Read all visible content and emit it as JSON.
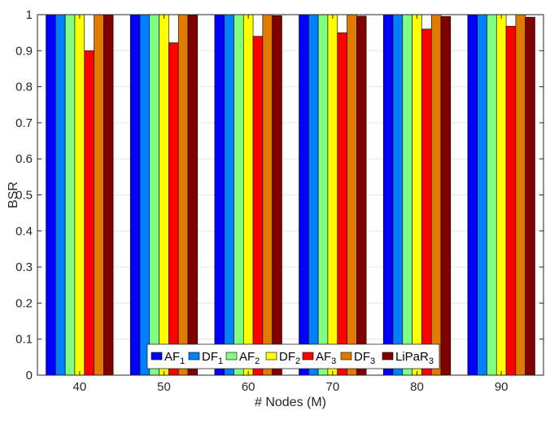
{
  "chart_data": {
    "type": "bar",
    "categories": [
      "40",
      "50",
      "60",
      "70",
      "80",
      "90"
    ],
    "series": [
      {
        "name": "AF",
        "sub": "1",
        "color": "#0000ff",
        "values": [
          1,
          1,
          1,
          1,
          1,
          1
        ]
      },
      {
        "name": "DF",
        "sub": "1",
        "color": "#0080ff",
        "values": [
          1,
          1,
          1,
          1,
          1,
          1
        ]
      },
      {
        "name": "AF",
        "sub": "2",
        "color": "#80ff80",
        "values": [
          1,
          1,
          1,
          1,
          1,
          1
        ]
      },
      {
        "name": "DF",
        "sub": "2",
        "color": "#ffff00",
        "values": [
          1,
          1,
          1,
          1,
          1,
          1
        ]
      },
      {
        "name": "AF",
        "sub": "3",
        "color": "#ff0000",
        "values": [
          0.9,
          0.922,
          0.94,
          0.95,
          0.96,
          0.968
        ]
      },
      {
        "name": "DF",
        "sub": "3",
        "color": "#e07b00",
        "values": [
          1,
          1,
          1,
          1,
          1,
          1
        ]
      },
      {
        "name": "LiPaR",
        "sub": "3",
        "color": "#800000",
        "values": [
          1,
          0.998,
          0.997,
          0.996,
          0.995,
          0.993
        ]
      }
    ],
    "xlabel": "# Nodes (M)",
    "ylabel": "BSR",
    "ylim": [
      0,
      1
    ],
    "yticks": [
      "0",
      "0.1",
      "0.2",
      "0.3",
      "0.4",
      "0.5",
      "0.6",
      "0.7",
      "0.8",
      "0.9",
      "1"
    ],
    "yticks_values": [
      0,
      0.1,
      0.2,
      0.3,
      0.4,
      0.5,
      0.6,
      0.7,
      0.8,
      0.9,
      1
    ],
    "grid": true,
    "legend_position": "bottom-center, horizontal"
  }
}
